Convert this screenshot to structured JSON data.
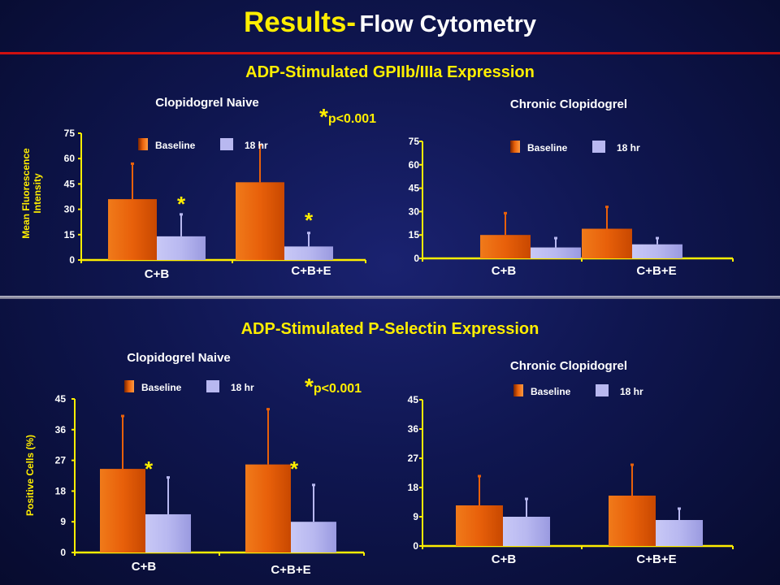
{
  "slide": {
    "title_main": "Results-",
    "title_sub": "Flow Cytometry"
  },
  "sections": {
    "gp": {
      "title": "ADP-Stimulated GPIIb/IIIa Expression"
    },
    "ps": {
      "title": "ADP-Stimulated P-Selectin Expression"
    }
  },
  "pvalues": {
    "top": {
      "star": "*",
      "text": "p<0.001"
    },
    "bottom": {
      "star": "*",
      "text": "p<0.001"
    }
  },
  "ylabels": {
    "top": {
      "line1": "Mean Fluorescence",
      "line2": "Intensity"
    },
    "bottom": {
      "line1": "Positive Cells (%)"
    }
  },
  "colors": {
    "baseline": "#e8600a",
    "hr18": "#b8b8f0",
    "axis": "#ffee00",
    "accent": "#ffee00",
    "text": "#ffffff"
  },
  "chart_data": [
    {
      "id": "gp-naive",
      "type": "bar",
      "title": "Clopidogrel Naive",
      "ylabel": "Mean Fluorescence Intensity",
      "categories": [
        "C+B",
        "C+B+E"
      ],
      "ylim": [
        0,
        75
      ],
      "yticks": [
        "0",
        "15",
        "30",
        "45",
        "60",
        "75"
      ],
      "series": [
        {
          "name": "Baseline",
          "values": [
            36,
            46
          ],
          "error": [
            21,
            22
          ]
        },
        {
          "name": "18 hr",
          "values": [
            14,
            8
          ],
          "error": [
            13,
            8
          ]
        }
      ],
      "significance": [
        {
          "category": "C+B",
          "series": "18 hr",
          "label": "*"
        },
        {
          "category": "C+B+E",
          "series": "18 hr",
          "label": "*"
        }
      ],
      "legend": "top"
    },
    {
      "id": "gp-chronic",
      "type": "bar",
      "title": "Chronic Clopidogrel",
      "categories": [
        "C+B",
        "C+B+E"
      ],
      "ylim": [
        0,
        75
      ],
      "yticks": [
        "0",
        "15",
        "30",
        "45",
        "60",
        "75"
      ],
      "series": [
        {
          "name": "Baseline",
          "values": [
            15,
            19
          ],
          "error": [
            14,
            14
          ]
        },
        {
          "name": "18 hr",
          "values": [
            7,
            9
          ],
          "error": [
            6,
            4
          ]
        }
      ],
      "legend": "top"
    },
    {
      "id": "ps-naive",
      "type": "bar",
      "title": "Clopidogrel Naive",
      "ylabel": "Positive Cells (%)",
      "categories": [
        "C+B",
        "C+B+E"
      ],
      "ylim": [
        0,
        45
      ],
      "yticks": [
        "0",
        "9",
        "18",
        "27",
        "36",
        "45"
      ],
      "series": [
        {
          "name": "Baseline",
          "values": [
            24.5,
            25.8
          ],
          "error": [
            15.5,
            16.2
          ]
        },
        {
          "name": "18 hr",
          "values": [
            11.2,
            9
          ],
          "error": [
            10.8,
            10.8
          ]
        }
      ],
      "significance": [
        {
          "category": "C+B",
          "series": "18 hr",
          "label": "*"
        },
        {
          "category": "C+B+E",
          "series": "18 hr",
          "label": "*"
        }
      ],
      "legend": "top"
    },
    {
      "id": "ps-chronic",
      "type": "bar",
      "title": "Chronic Clopidogrel",
      "categories": [
        "C+B",
        "C+B+E"
      ],
      "ylim": [
        0,
        45
      ],
      "yticks": [
        "0",
        "9",
        "18",
        "27",
        "36",
        "45"
      ],
      "series": [
        {
          "name": "Baseline",
          "values": [
            12.5,
            15.5
          ],
          "error": [
            9,
            9.5
          ]
        },
        {
          "name": "18 hr",
          "values": [
            9,
            8
          ],
          "error": [
            5.5,
            3.5
          ]
        }
      ],
      "legend": "top"
    }
  ]
}
